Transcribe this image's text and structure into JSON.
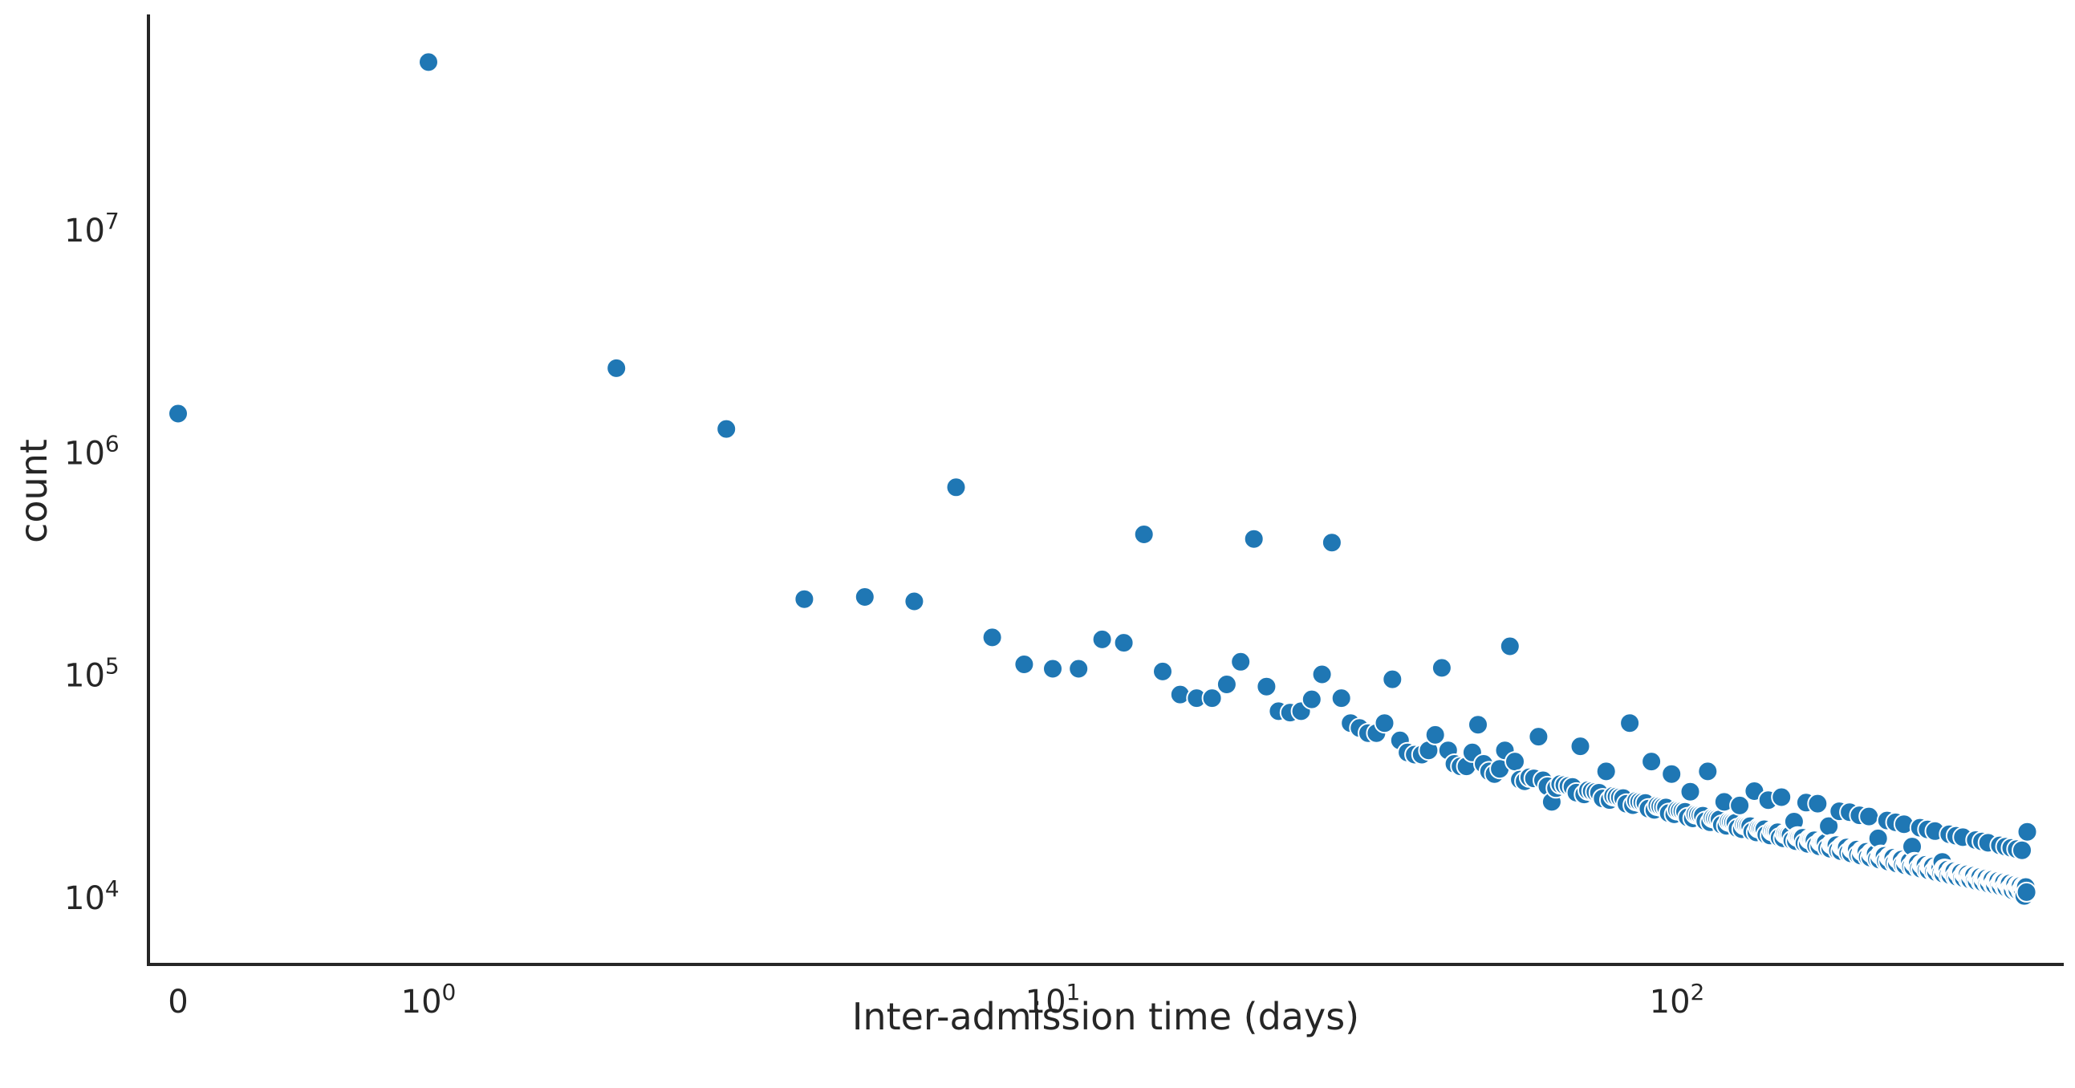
{
  "chart_data": {
    "type": "scatter",
    "title": "",
    "xlabel": "Inter-admission time (days)",
    "ylabel": "count",
    "xscale": "symlog",
    "yscale": "log",
    "xlim": [
      -0.04,
      365
    ],
    "ylim": [
      5000,
      100000000
    ],
    "grid": false,
    "marker_color": "#1f77b4",
    "x_ticks": [
      {
        "value": 0,
        "label": "0",
        "sup": ""
      },
      {
        "value": 1,
        "label": "10",
        "sup": "0"
      },
      {
        "value": 10,
        "label": "10",
        "sup": "1"
      },
      {
        "value": 100,
        "label": "10",
        "sup": "2"
      }
    ],
    "y_ticks": [
      {
        "value": 10000,
        "label": "10",
        "sup": "4"
      },
      {
        "value": 100000,
        "label": "10",
        "sup": "5"
      },
      {
        "value": 1000000,
        "label": "10",
        "sup": "6"
      },
      {
        "value": 10000000,
        "label": "10",
        "sup": "7"
      }
    ],
    "anchor_points": [
      [
        0,
        1500000
      ],
      [
        1,
        57000000
      ],
      [
        2,
        2400000
      ],
      [
        3,
        1280000
      ],
      [
        4,
        220000
      ],
      [
        5,
        225000
      ],
      [
        6,
        215000
      ],
      [
        7,
        700000
      ],
      [
        8,
        148000
      ],
      [
        9,
        112000
      ],
      [
        10,
        107000
      ],
      [
        11,
        107000
      ],
      [
        12,
        145000
      ],
      [
        13,
        140000
      ],
      [
        14,
        430000
      ],
      [
        15,
        104000
      ],
      [
        16,
        82000
      ],
      [
        17,
        79000
      ],
      [
        18,
        79000
      ],
      [
        19,
        91000
      ],
      [
        20,
        115000
      ],
      [
        21,
        410000
      ],
      [
        22,
        89000
      ],
      [
        23,
        69000
      ],
      [
        24,
        68000
      ],
      [
        25,
        69000
      ],
      [
        26,
        78000
      ],
      [
        27,
        101000
      ],
      [
        28,
        395000
      ],
      [
        29,
        79000
      ],
      [
        30,
        61000
      ],
      [
        31,
        58000
      ],
      [
        32,
        55000
      ],
      [
        33,
        55000
      ],
      [
        34,
        61000
      ],
      [
        35,
        96000
      ],
      [
        36,
        51000
      ],
      [
        37,
        45000
      ],
      [
        38,
        44000
      ],
      [
        39,
        44000
      ],
      [
        40,
        46000
      ],
      [
        41,
        54000
      ],
      [
        42,
        108000
      ],
      [
        43,
        46000
      ],
      [
        44,
        40000
      ],
      [
        45,
        39000
      ],
      [
        46,
        39000
      ],
      [
        47,
        45000
      ],
      [
        48,
        60000
      ],
      [
        49,
        40000
      ],
      [
        50,
        37000
      ],
      [
        51,
        36000
      ],
      [
        52,
        38000
      ],
      [
        53,
        46000
      ],
      [
        54,
        135000
      ],
      [
        55,
        41000
      ],
      [
        56,
        34000
      ],
      [
        60,
        53000
      ],
      [
        63,
        27000
      ],
      [
        70,
        48000
      ],
      [
        77,
        37000
      ],
      [
        84,
        61000
      ],
      [
        91,
        41000
      ],
      [
        98,
        36000
      ],
      [
        105,
        30000
      ],
      [
        112,
        37000
      ],
      [
        119,
        27000
      ],
      [
        126,
        26000
      ],
      [
        140,
        27500
      ],
      [
        154,
        22000
      ],
      [
        168,
        26500
      ],
      [
        175,
        21000
      ],
      [
        182,
        24500
      ],
      [
        196,
        23500
      ],
      [
        210,
        18500
      ],
      [
        238,
        17000
      ],
      [
        266,
        14500
      ],
      [
        294,
        12500
      ],
      [
        322,
        11500
      ],
      [
        345,
        10800
      ],
      [
        360,
        10200
      ],
      [
        364,
        19800
      ]
    ]
  }
}
